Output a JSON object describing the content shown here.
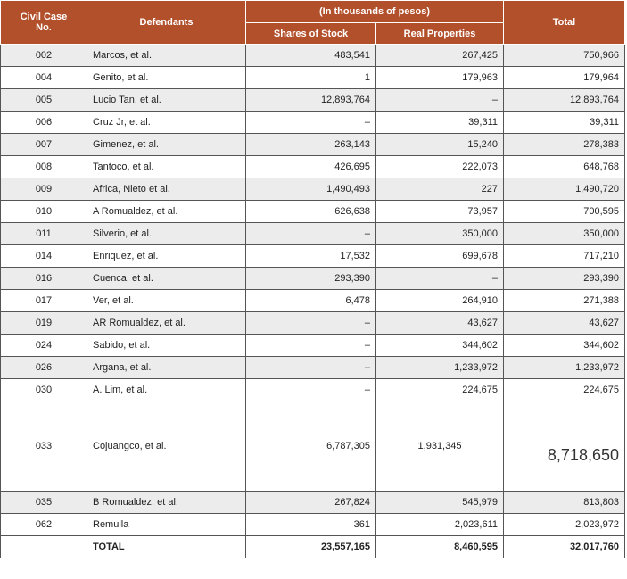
{
  "header": {
    "case_label_1": "Civil Case",
    "case_label_2": "No.",
    "defendants": "Defendants",
    "group": "(In thousands of pesos)",
    "shares": "Shares of Stock",
    "real": "Real Properties",
    "total": "Total"
  },
  "rows": [
    {
      "case": "002",
      "defendant": "Marcos, et al.",
      "shares": "483,541",
      "real": "267,425",
      "total": "750,966"
    },
    {
      "case": "004",
      "defendant": "Genito, et al.",
      "shares": "1",
      "real": "179,963",
      "total": "179,964"
    },
    {
      "case": "005",
      "defendant": "Lucio Tan, et al.",
      "shares": "12,893,764",
      "real": "–",
      "total": "12,893,764"
    },
    {
      "case": "006",
      "defendant": "Cruz Jr, et al.",
      "shares": "–",
      "real": "39,311",
      "total": "39,311"
    },
    {
      "case": "007",
      "defendant": "Gimenez, et al.",
      "shares": "263,143",
      "real": "15,240",
      "total": "278,383"
    },
    {
      "case": "008",
      "defendant": "Tantoco, et al.",
      "shares": "426,695",
      "real": "222,073",
      "total": "648,768"
    },
    {
      "case": "009",
      "defendant": "Africa, Nieto et al.",
      "shares": "1,490,493",
      "real": "227",
      "total": "1,490,720"
    },
    {
      "case": "010",
      "defendant": "A Romualdez, et al.",
      "shares": "626,638",
      "real": "73,957",
      "total": "700,595"
    },
    {
      "case": "011",
      "defendant": "Silverio, et al.",
      "shares": "–",
      "real": "350,000",
      "total": "350,000"
    },
    {
      "case": "014",
      "defendant": "Enriquez, et al.",
      "shares": "17,532",
      "real": "699,678",
      "total": "717,210"
    },
    {
      "case": "016",
      "defendant": "Cuenca, et al.",
      "shares": "293,390",
      "real": "–",
      "total": "293,390"
    },
    {
      "case": "017",
      "defendant": "Ver, et al.",
      "shares": "6,478",
      "real": "264,910",
      "total": "271,388"
    },
    {
      "case": "019",
      "defendant": "AR Romualdez, et al.",
      "shares": "–",
      "real": "43,627",
      "total": "43,627"
    },
    {
      "case": "024",
      "defendant": "Sabido, et al.",
      "shares": "–",
      "real": "344,602",
      "total": "344,602"
    },
    {
      "case": "026",
      "defendant": "Argana, et al.",
      "shares": "–",
      "real": "1,233,972",
      "total": "1,233,972"
    },
    {
      "case": "030",
      "defendant": "A. Lim, et al.",
      "shares": "–",
      "real": "224,675",
      "total": "224,675"
    }
  ],
  "big_row": {
    "case": "033",
    "defendant": "Cojuangco, et al.",
    "shares": "6,787,305",
    "real": "1,931,345",
    "total": "8,718,650"
  },
  "tail_rows": [
    {
      "case": "035",
      "defendant": "B Romualdez, et al.",
      "shares": "267,824",
      "real": "545,979",
      "total": "813,803"
    },
    {
      "case": "062",
      "defendant": "Remulla",
      "shares": "361",
      "real": "2,023,611",
      "total": "2,023,972"
    }
  ],
  "totals": {
    "label": "TOTAL",
    "shares": "23,557,165",
    "real": "8,460,595",
    "total": "32,017,760"
  }
}
